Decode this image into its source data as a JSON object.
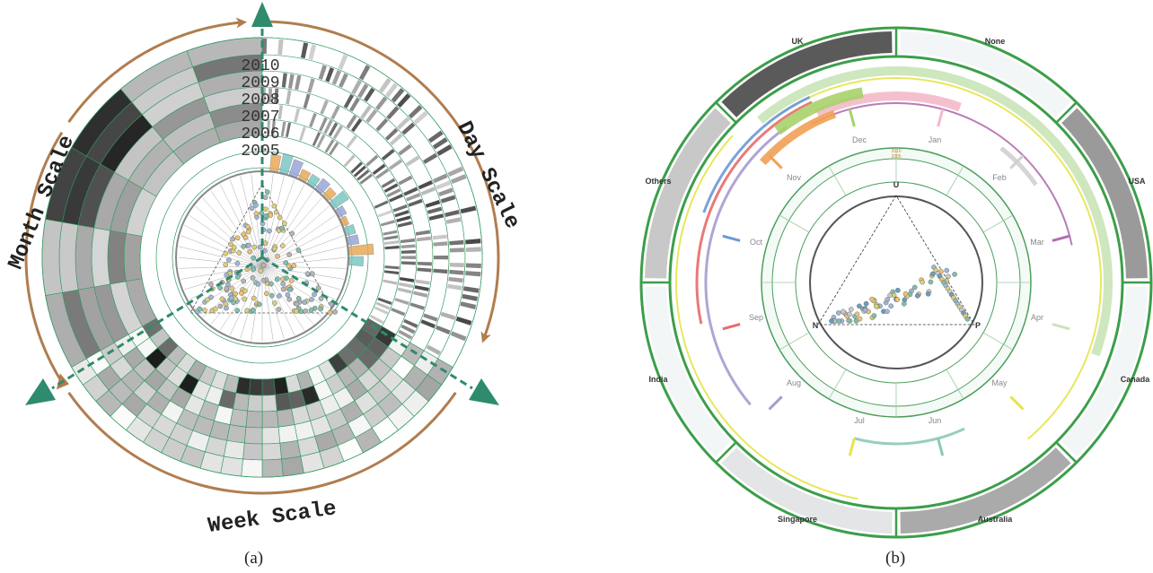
{
  "panel_a": {
    "caption": "(a)",
    "scale_labels": {
      "month": "Month Scale",
      "day": "Day Scale",
      "week": "Week Scale"
    },
    "years": [
      "2010",
      "2009",
      "2008",
      "2007",
      "2006",
      "2005"
    ],
    "colors": {
      "arrow": "#b07d4f",
      "axis": "#2e8b6e",
      "ring": "#2e9a5e",
      "dark": "#333333"
    }
  },
  "panel_b": {
    "caption": "(b)",
    "countries": [
      "UK",
      "None",
      "USA",
      "Canada",
      "Australia",
      "Singapore",
      "India",
      "Others"
    ],
    "months": [
      "Jan",
      "Feb",
      "Mar",
      "Apr",
      "May",
      "Jun",
      "Jul",
      "Aug",
      "Sep",
      "Oct",
      "Nov",
      "Dec"
    ],
    "inner_years": [
      "2010",
      "2005"
    ],
    "triangle_vertices": {
      "top": "U",
      "left": "N",
      "right": "P"
    },
    "colors": {
      "ring": "#3c9e4a",
      "uk": "#5a5a5a",
      "usa": "#9a9a9a",
      "australia": "#aaaaaa"
    }
  }
}
